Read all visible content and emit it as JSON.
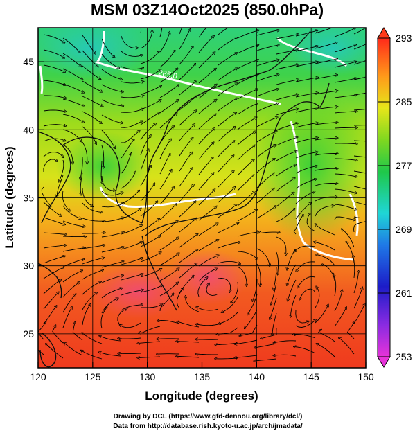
{
  "title": "MSM 03Z14Oct2025 (850.0hPa)",
  "x_axis": {
    "label": "Longitude (degrees)",
    "range": [
      120,
      150
    ],
    "ticks": [
      120,
      125,
      130,
      135,
      140,
      145,
      150
    ],
    "tick_labels": [
      "120",
      "125",
      "130",
      "135",
      "140",
      "145",
      "150"
    ]
  },
  "y_axis": {
    "label": "Latitude  (degrees)",
    "range": [
      22.5,
      47.5
    ],
    "ticks": [
      25,
      30,
      35,
      40,
      45
    ],
    "tick_labels": [
      "25",
      "30",
      "35",
      "40",
      "45"
    ]
  },
  "colorbar": {
    "range": [
      253,
      293
    ],
    "ticks": [
      253,
      261,
      269,
      277,
      285,
      293
    ],
    "tick_labels": [
      "253",
      "261",
      "269",
      "277",
      "285",
      "293"
    ]
  },
  "contour_labels": [
    "285.0"
  ],
  "credits": {
    "line1": "Drawing by DCL (https://www.gfd-dennou.org/library/dcl/)",
    "line2": "Data from http://database.rish.kyoto-u.ac.jp/arch/jmadata/"
  }
}
